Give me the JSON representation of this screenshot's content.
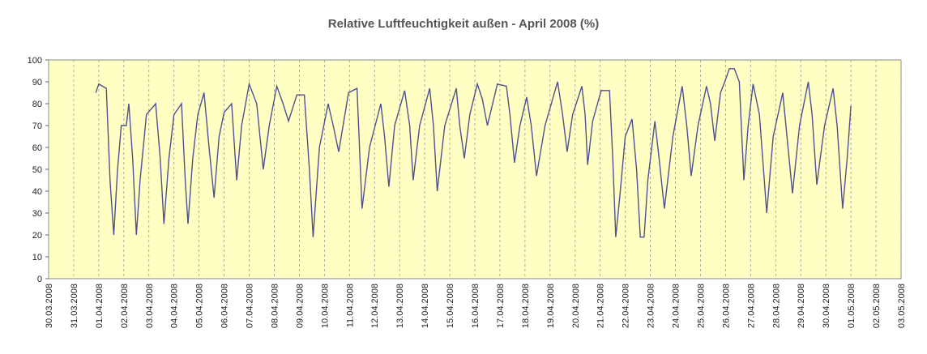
{
  "chart_data": {
    "type": "line",
    "title": "Relative Luftfeuchtigkeit außen - April 2008 (%)",
    "x": [
      1.88,
      2.0,
      2.15,
      2.3,
      2.45,
      2.6,
      2.75,
      2.9,
      3.1,
      3.2,
      3.35,
      3.5,
      3.65,
      3.9,
      4.27,
      4.45,
      4.6,
      4.8,
      5.0,
      5.3,
      5.45,
      5.56,
      5.75,
      5.95,
      6.2,
      6.4,
      6.6,
      6.8,
      7.0,
      7.3,
      7.5,
      7.7,
      8.0,
      8.3,
      8.56,
      8.8,
      9.1,
      9.35,
      9.57,
      9.9,
      10.2,
      10.4,
      10.55,
      10.8,
      11.15,
      11.35,
      11.57,
      11.96,
      12.3,
      12.5,
      12.8,
      13.25,
      13.4,
      13.57,
      13.8,
      14.2,
      14.4,
      14.54,
      14.8,
      15.2,
      15.35,
      15.5,
      15.8,
      16.26,
      16.4,
      16.58,
      16.8,
      17.1,
      17.3,
      17.5,
      17.9,
      18.26,
      18.4,
      18.58,
      18.8,
      19.07,
      19.25,
      19.46,
      19.8,
      20.3,
      20.5,
      20.68,
      20.9,
      21.27,
      21.4,
      21.5,
      21.7,
      22.04,
      22.37,
      22.5,
      22.62,
      22.8,
      23.0,
      23.27,
      23.45,
      23.6,
      23.75,
      23.9,
      24.18,
      24.35,
      24.56,
      24.9,
      25.27,
      25.45,
      25.63,
      25.9,
      26.24,
      26.4,
      26.57,
      26.8,
      27.0,
      27.15,
      27.35,
      27.55,
      27.73,
      27.9,
      28.1,
      28.35,
      28.64,
      28.9,
      29.28,
      29.45,
      29.67,
      29.95,
      30.3,
      30.45,
      30.64,
      30.95,
      31.29,
      31.45,
      31.67,
      31.85,
      32.0
    ],
    "series": [
      {
        "color": "#505090",
        "values": [
          85,
          89,
          88,
          87,
          45,
          20,
          50,
          70,
          70,
          80,
          55,
          20,
          45,
          75,
          80,
          55,
          25,
          55,
          75,
          80,
          45,
          25,
          55,
          75,
          85,
          60,
          37,
          65,
          76,
          80,
          45,
          70,
          89,
          80,
          50,
          70,
          88,
          80,
          72,
          84,
          84,
          50,
          19,
          60,
          80,
          70,
          58,
          85,
          87,
          32,
          60,
          80,
          65,
          42,
          70,
          86,
          70,
          45,
          70,
          87,
          70,
          40,
          70,
          87,
          70,
          55,
          75,
          89,
          82,
          70,
          89,
          88,
          75,
          53,
          70,
          83,
          70,
          47,
          70,
          90,
          75,
          58,
          75,
          88,
          75,
          52,
          72,
          86,
          86,
          55,
          19,
          40,
          65,
          73,
          50,
          19,
          19,
          45,
          72,
          55,
          32,
          65,
          88,
          70,
          47,
          70,
          88,
          80,
          63,
          85,
          91,
          96,
          96,
          90,
          45,
          70,
          89,
          75,
          30,
          65,
          85,
          65,
          39,
          70,
          90,
          75,
          43,
          70,
          87,
          70,
          32,
          55,
          79
        ]
      }
    ],
    "xlim": [
      0,
      34
    ],
    "xticks": [
      {
        "value": 0,
        "label": "30.03.2008"
      },
      {
        "value": 1,
        "label": "31.03.2008"
      },
      {
        "value": 2,
        "label": "01.04.2008"
      },
      {
        "value": 3,
        "label": "02.04.2008"
      },
      {
        "value": 4,
        "label": "03.04.2008"
      },
      {
        "value": 5,
        "label": "04.04.2008"
      },
      {
        "value": 6,
        "label": "05.04.2008"
      },
      {
        "value": 7,
        "label": "06.04.2008"
      },
      {
        "value": 8,
        "label": "07.04.2008"
      },
      {
        "value": 9,
        "label": "08.04.2008"
      },
      {
        "value": 10,
        "label": "09.04.2008"
      },
      {
        "value": 11,
        "label": "10.04.2008"
      },
      {
        "value": 12,
        "label": "11.04.2008"
      },
      {
        "value": 13,
        "label": "12.04.2008"
      },
      {
        "value": 14,
        "label": "13.04.2008"
      },
      {
        "value": 15,
        "label": "14.04.2008"
      },
      {
        "value": 16,
        "label": "15.04.2008"
      },
      {
        "value": 17,
        "label": "16.04.2008"
      },
      {
        "value": 18,
        "label": "17.04.2008"
      },
      {
        "value": 19,
        "label": "18.04.2008"
      },
      {
        "value": 20,
        "label": "19.04.2008"
      },
      {
        "value": 21,
        "label": "20.04.2008"
      },
      {
        "value": 22,
        "label": "21.04.2008"
      },
      {
        "value": 23,
        "label": "22.04.2008"
      },
      {
        "value": 24,
        "label": "23.04.2008"
      },
      {
        "value": 25,
        "label": "24.04.2008"
      },
      {
        "value": 26,
        "label": "25.04.2008"
      },
      {
        "value": 27,
        "label": "26.04.2008"
      },
      {
        "value": 28,
        "label": "27.04.2008"
      },
      {
        "value": 29,
        "label": "28.04.2008"
      },
      {
        "value": 30,
        "label": "29.04.2008"
      },
      {
        "value": 31,
        "label": "30.04.2008"
      },
      {
        "value": 32,
        "label": "01.05.2008"
      },
      {
        "value": 33,
        "label": "02.05.2008"
      },
      {
        "value": 34,
        "label": "03.05.2008"
      }
    ],
    "ylim": [
      0,
      100
    ],
    "yticks": [
      0,
      10,
      20,
      30,
      40,
      50,
      60,
      70,
      80,
      90,
      100
    ],
    "grid": true
  }
}
